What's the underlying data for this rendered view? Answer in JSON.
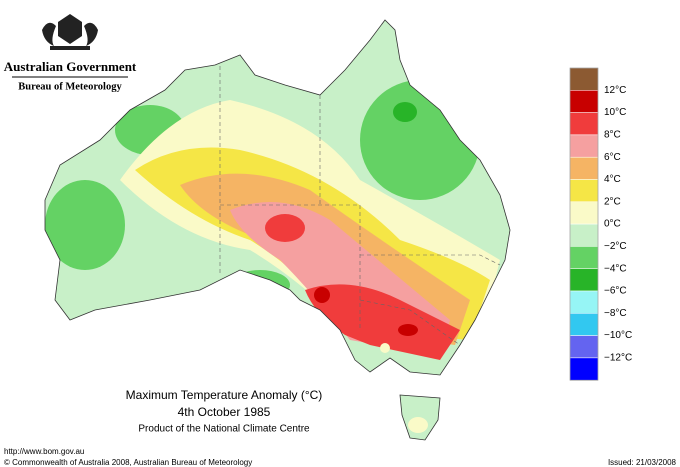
{
  "header": {
    "government": "Australian Government",
    "bureau": "Bureau of Meteorology"
  },
  "map": {
    "title": "Maximum Temperature Anomaly (°C)",
    "date": "4th October 1985",
    "credit": "Product of the National Climate Centre"
  },
  "legend": {
    "colors": [
      "#8c5a32",
      "#c80000",
      "#f03c3c",
      "#f5a0a0",
      "#f5b464",
      "#f5e646",
      "#fafac8",
      "#c8f0c8",
      "#64d264",
      "#28b428",
      "#96f5f5",
      "#32c8f0",
      "#6464f0",
      "#0000ff"
    ],
    "labels": [
      "12°C",
      "10°C",
      "8°C",
      "6°C",
      "4°C",
      "2°C",
      "0°C",
      "−2°C",
      "−4°C",
      "−6°C",
      "−8°C",
      "−10°C",
      "−12°C"
    ]
  },
  "footer": {
    "url": "http://www.bom.gov.au",
    "copyright": "© Commonwealth of Australia 2008, Australian Bureau of Meteorology",
    "issued": "Issued: 21/03/2008"
  }
}
